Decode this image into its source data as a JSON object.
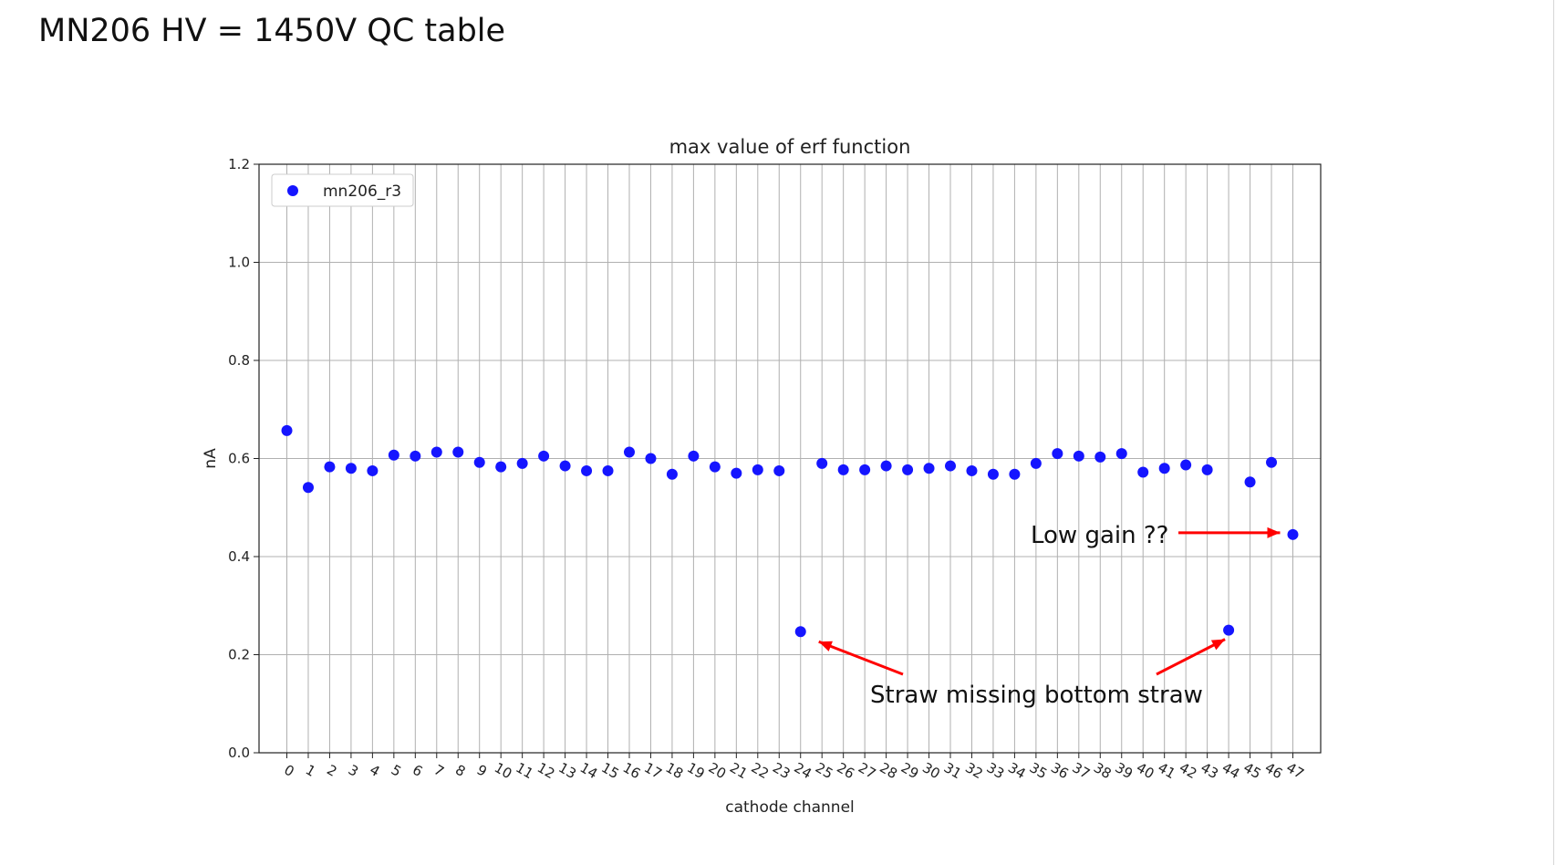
{
  "slide": {
    "title": "MN206 HV = 1450V QC table"
  },
  "chart_data": {
    "type": "scatter",
    "title": "max value of erf function",
    "xlabel": "cathode channel",
    "ylabel": "nA",
    "xlim": [
      -1.3,
      48.3
    ],
    "ylim": [
      0.0,
      1.2
    ],
    "yticks": [
      0.0,
      0.2,
      0.4,
      0.6,
      0.8,
      1.0,
      1.2
    ],
    "ytick_labels": [
      "0.0",
      "0.2",
      "0.4",
      "0.6",
      "0.8",
      "1.0",
      "1.2"
    ],
    "xticks": [
      0,
      1,
      2,
      3,
      4,
      5,
      6,
      7,
      8,
      9,
      10,
      11,
      12,
      13,
      14,
      15,
      16,
      17,
      18,
      19,
      20,
      21,
      22,
      23,
      24,
      25,
      26,
      27,
      28,
      29,
      30,
      31,
      32,
      33,
      34,
      35,
      36,
      37,
      38,
      39,
      40,
      41,
      42,
      43,
      44,
      45,
      46,
      47
    ],
    "xtick_labels": [
      "0",
      "1",
      "2",
      "3",
      "4",
      "5",
      "6",
      "7",
      "8",
      "9",
      "10",
      "11",
      "12",
      "13",
      "14",
      "15",
      "16",
      "17",
      "18",
      "19",
      "20",
      "21",
      "22",
      "23",
      "24",
      "25",
      "26",
      "27",
      "28",
      "29",
      "30",
      "31",
      "32",
      "33",
      "34",
      "35",
      "36",
      "37",
      "38",
      "39",
      "40",
      "41",
      "42",
      "43",
      "44",
      "45",
      "46",
      "47"
    ],
    "grid": true,
    "legend_position": "top-left",
    "series": [
      {
        "name": "mn206_r3",
        "color": "#1515ff",
        "points": [
          [
            0,
            0.657
          ],
          [
            1,
            0.541
          ],
          [
            2,
            0.583
          ],
          [
            3,
            0.58
          ],
          [
            4,
            0.575
          ],
          [
            5,
            0.607
          ],
          [
            6,
            0.605
          ],
          [
            7,
            0.613
          ],
          [
            8,
            0.613
          ],
          [
            9,
            0.592
          ],
          [
            10,
            0.583
          ],
          [
            11,
            0.59
          ],
          [
            12,
            0.605
          ],
          [
            13,
            0.585
          ],
          [
            14,
            0.575
          ],
          [
            15,
            0.575
          ],
          [
            16,
            0.613
          ],
          [
            17,
            0.6
          ],
          [
            18,
            0.568
          ],
          [
            19,
            0.605
          ],
          [
            20,
            0.583
          ],
          [
            21,
            0.57
          ],
          [
            22,
            0.577
          ],
          [
            23,
            0.575
          ],
          [
            24,
            0.247
          ],
          [
            25,
            0.59
          ],
          [
            26,
            0.577
          ],
          [
            27,
            0.577
          ],
          [
            28,
            0.585
          ],
          [
            29,
            0.577
          ],
          [
            30,
            0.58
          ],
          [
            31,
            0.585
          ],
          [
            32,
            0.575
          ],
          [
            33,
            0.568
          ],
          [
            34,
            0.568
          ],
          [
            35,
            0.59
          ],
          [
            36,
            0.61
          ],
          [
            37,
            0.605
          ],
          [
            38,
            0.603
          ],
          [
            39,
            0.61
          ],
          [
            40,
            0.572
          ],
          [
            41,
            0.58
          ],
          [
            42,
            0.587
          ],
          [
            43,
            0.577
          ],
          [
            44,
            0.25
          ],
          [
            45,
            0.552
          ],
          [
            46,
            0.592
          ],
          [
            47,
            0.445
          ]
        ]
      }
    ],
    "annotations": [
      {
        "text": "Low gain ??",
        "color": "#111111",
        "arrow_color": "#ff0000",
        "arrow_targets": [
          [
            47,
            0.445
          ]
        ]
      },
      {
        "text": "Straw missing bottom straw",
        "color": "#111111",
        "arrow_color": "#ff0000",
        "arrow_targets": [
          [
            24,
            0.247
          ],
          [
            44,
            0.25
          ]
        ]
      }
    ]
  }
}
